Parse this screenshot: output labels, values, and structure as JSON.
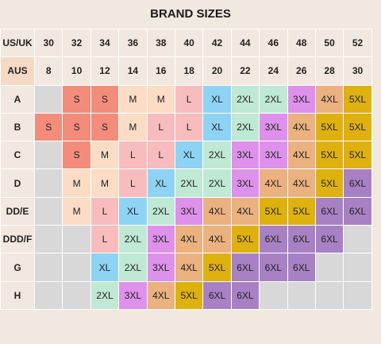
{
  "title": "BRAND SIZES",
  "header_us_label": "US/UK",
  "header_aus_label": "AUS",
  "us_sizes": [
    "30",
    "32",
    "34",
    "36",
    "38",
    "40",
    "42",
    "44",
    "46",
    "48",
    "50",
    "52"
  ],
  "aus_sizes": [
    "8",
    "10",
    "12",
    "14",
    "16",
    "18",
    "20",
    "22",
    "24",
    "26",
    "28",
    "30"
  ],
  "colors": {
    "S": "#f38c7b",
    "M": "#fcdcc5",
    "L": "#f8bcbe",
    "XL": "#8fd3f4",
    "2XL": "#bfe8d5",
    "3XL": "#de91ea",
    "4XL": "#ebb17f",
    "5XL": "#dfb10f",
    "6XL": "#a881c4",
    "": "#d8d8d8"
  },
  "rows": [
    {
      "label": "A",
      "cells": [
        "",
        "S",
        "S",
        "M",
        "M",
        "L",
        "XL",
        "2XL",
        "2XL",
        "3XL",
        "4XL",
        "5XL"
      ]
    },
    {
      "label": "B",
      "cells": [
        "S",
        "S",
        "S",
        "M",
        "L",
        "L",
        "XL",
        "2XL",
        "3XL",
        "4XL",
        "5XL",
        "5XL"
      ]
    },
    {
      "label": "C",
      "cells": [
        "",
        "S",
        "M",
        "L",
        "L",
        "XL",
        "2XL",
        "3XL",
        "3XL",
        "4XL",
        "5XL",
        "5XL"
      ]
    },
    {
      "label": "D",
      "cells": [
        "",
        "M",
        "M",
        "L",
        "XL",
        "2XL",
        "2XL",
        "3XL",
        "4XL",
        "4XL",
        "5XL",
        "6XL"
      ]
    },
    {
      "label": "DD/E",
      "cells": [
        "",
        "M",
        "L",
        "XL",
        "2XL",
        "3XL",
        "4XL",
        "4XL",
        "5XL",
        "5XL",
        "6XL",
        "6XL"
      ]
    },
    {
      "label": "DDD/F",
      "cells": [
        "",
        "",
        "L",
        "2XL",
        "3XL",
        "4XL",
        "4XL",
        "5XL",
        "6XL",
        "6XL",
        "6XL",
        ""
      ]
    },
    {
      "label": "G",
      "cells": [
        "",
        "",
        "XL",
        "2XL",
        "3XL",
        "4XL",
        "5XL",
        "6XL",
        "6XL",
        "6XL",
        "",
        ""
      ]
    },
    {
      "label": "H",
      "cells": [
        "",
        "",
        "2XL",
        "3XL",
        "4XL",
        "5XL",
        "6XL",
        "6XL",
        "",
        "",
        "",
        ""
      ]
    }
  ]
}
